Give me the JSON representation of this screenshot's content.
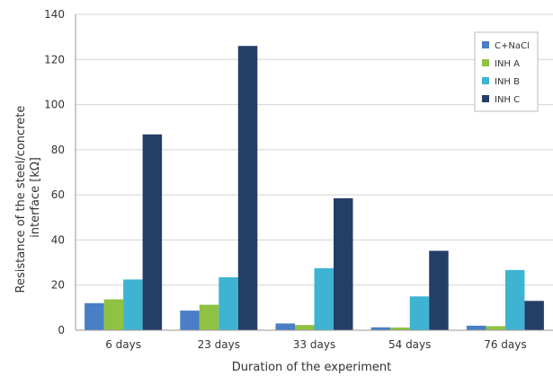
{
  "chart_data": {
    "type": "bar",
    "xlabel": "Duration of the experiment",
    "ylabel_lines": [
      "Resistance of the steel/concrete",
      "interface [kΩ]"
    ],
    "categories": [
      "6 days",
      "23 days",
      "33 days",
      "54 days",
      "76 days"
    ],
    "ylim": [
      0,
      140
    ],
    "yticks": [
      0,
      20,
      40,
      60,
      80,
      100,
      120,
      140
    ],
    "grid": true,
    "legend_position": "top-right",
    "series": [
      {
        "name": "C+NaCl",
        "color": "#4a7ec6",
        "values": [
          12,
          8.7,
          3,
          1.3,
          2
        ]
      },
      {
        "name": "INH A",
        "color": "#8fc142",
        "values": [
          13.7,
          11.3,
          2.3,
          1.2,
          1.8
        ]
      },
      {
        "name": "INH B",
        "color": "#3fb4d2",
        "values": [
          22.5,
          23.5,
          27.5,
          15,
          26.7
        ]
      },
      {
        "name": "INH C",
        "color": "#243e68",
        "values": [
          86.8,
          126,
          58.5,
          35.2,
          13
        ]
      }
    ]
  }
}
